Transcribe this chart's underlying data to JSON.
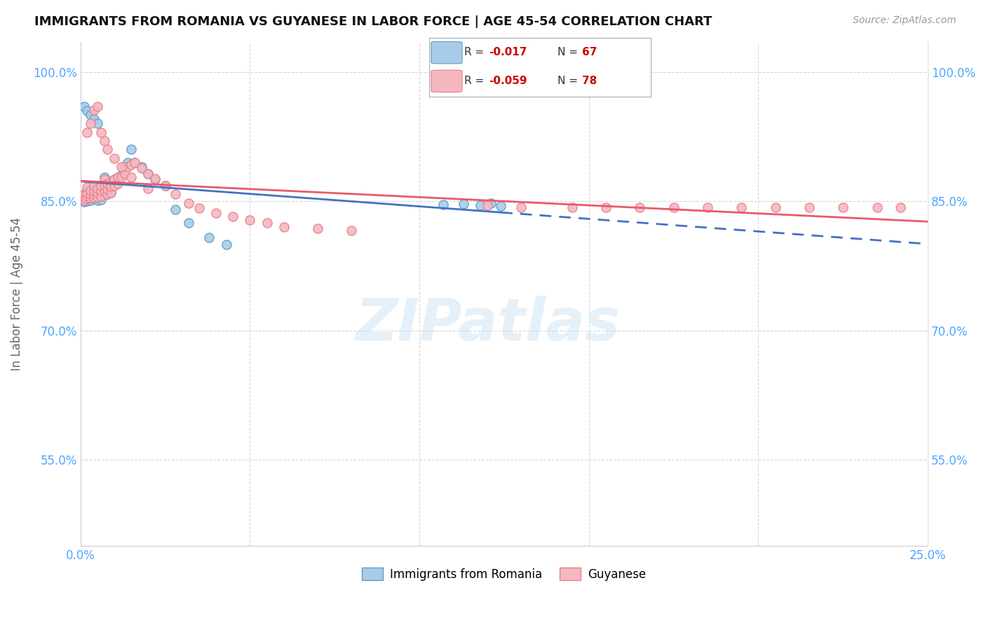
{
  "title": "IMMIGRANTS FROM ROMANIA VS GUYANESE IN LABOR FORCE | AGE 45-54 CORRELATION CHART",
  "source": "Source: ZipAtlas.com",
  "ylabel": "In Labor Force | Age 45-54",
  "xlim": [
    0.0,
    0.25
  ],
  "ylim": [
    0.45,
    1.035
  ],
  "yticks": [
    0.55,
    0.7,
    0.85,
    1.0
  ],
  "ytick_labels": [
    "55.0%",
    "70.0%",
    "85.0%",
    "100.0%"
  ],
  "xticks": [
    0.0,
    0.05,
    0.1,
    0.15,
    0.2,
    0.25
  ],
  "xtick_labels": [
    "0.0%",
    "",
    "",
    "",
    "",
    "25.0%"
  ],
  "color_romania": "#a8cce8",
  "color_guyanese": "#f4b8c1",
  "color_romania_edge": "#5b9ec9",
  "color_guyanese_edge": "#e8808a",
  "color_romania_line": "#4472c4",
  "color_guyanese_line": "#e85a6a",
  "background_color": "#ffffff",
  "romania_x": [
    0.0005,
    0.001,
    0.001,
    0.001,
    0.0015,
    0.002,
    0.002,
    0.002,
    0.002,
    0.003,
    0.003,
    0.003,
    0.003,
    0.003,
    0.004,
    0.004,
    0.004,
    0.004,
    0.005,
    0.005,
    0.005,
    0.005,
    0.006,
    0.006,
    0.006,
    0.007,
    0.007,
    0.007,
    0.008,
    0.008,
    0.009,
    0.009,
    0.01,
    0.01,
    0.011,
    0.012,
    0.013,
    0.014,
    0.015,
    0.016,
    0.018,
    0.02,
    0.022,
    0.025,
    0.028,
    0.032,
    0.038,
    0.043,
    0.001,
    0.002,
    0.003,
    0.004,
    0.005,
    0.107,
    0.113,
    0.118,
    0.121,
    0.124
  ],
  "romania_y": [
    0.852,
    0.849,
    0.852,
    0.856,
    0.851,
    0.854,
    0.85,
    0.856,
    0.862,
    0.851,
    0.854,
    0.856,
    0.858,
    0.862,
    0.853,
    0.855,
    0.86,
    0.866,
    0.851,
    0.856,
    0.86,
    0.865,
    0.852,
    0.858,
    0.865,
    0.862,
    0.87,
    0.878,
    0.858,
    0.865,
    0.86,
    0.868,
    0.87,
    0.875,
    0.878,
    0.88,
    0.89,
    0.895,
    0.91,
    0.895,
    0.89,
    0.882,
    0.875,
    0.868,
    0.84,
    0.825,
    0.808,
    0.8,
    0.96,
    0.955,
    0.95,
    0.945,
    0.94,
    0.846,
    0.847,
    0.845,
    0.848,
    0.844
  ],
  "guyanese_x": [
    0.0005,
    0.001,
    0.001,
    0.001,
    0.0015,
    0.002,
    0.002,
    0.002,
    0.003,
    0.003,
    0.003,
    0.004,
    0.004,
    0.004,
    0.004,
    0.005,
    0.005,
    0.005,
    0.006,
    0.006,
    0.006,
    0.007,
    0.007,
    0.007,
    0.008,
    0.008,
    0.008,
    0.009,
    0.009,
    0.01,
    0.01,
    0.011,
    0.011,
    0.012,
    0.013,
    0.014,
    0.015,
    0.016,
    0.018,
    0.02,
    0.022,
    0.025,
    0.028,
    0.032,
    0.035,
    0.04,
    0.045,
    0.05,
    0.055,
    0.06,
    0.07,
    0.08,
    0.12,
    0.13,
    0.145,
    0.155,
    0.165,
    0.175,
    0.185,
    0.195,
    0.205,
    0.215,
    0.225,
    0.235,
    0.242,
    0.002,
    0.003,
    0.004,
    0.005,
    0.006,
    0.007,
    0.008,
    0.01,
    0.012,
    0.015,
    0.02
  ],
  "guyanese_y": [
    0.854,
    0.851,
    0.854,
    0.858,
    0.853,
    0.856,
    0.86,
    0.866,
    0.854,
    0.858,
    0.862,
    0.854,
    0.858,
    0.862,
    0.868,
    0.855,
    0.86,
    0.865,
    0.856,
    0.862,
    0.868,
    0.862,
    0.868,
    0.875,
    0.858,
    0.864,
    0.87,
    0.86,
    0.867,
    0.868,
    0.875,
    0.87,
    0.878,
    0.878,
    0.882,
    0.89,
    0.892,
    0.895,
    0.888,
    0.882,
    0.876,
    0.868,
    0.858,
    0.848,
    0.842,
    0.836,
    0.832,
    0.828,
    0.825,
    0.82,
    0.818,
    0.816,
    0.845,
    0.843,
    0.843,
    0.843,
    0.843,
    0.843,
    0.843,
    0.843,
    0.843,
    0.843,
    0.843,
    0.843,
    0.843,
    0.93,
    0.94,
    0.956,
    0.96,
    0.93,
    0.92,
    0.91,
    0.9,
    0.89,
    0.878,
    0.865
  ]
}
